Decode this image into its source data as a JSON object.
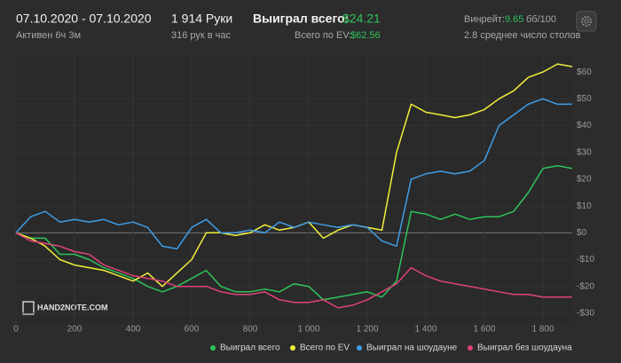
{
  "header": {
    "period": "07.10.2020 - 07.10.2020",
    "active": "Активен 6ч 3м",
    "hands": "1 914 Руки",
    "rate": "316 рук в час",
    "won_label": "Выиграл всего:",
    "won_value": "$24.21",
    "ev_label": "Всего по EV:",
    "ev_value": "$62.56",
    "winrate_label": "Винрейт:",
    "winrate_value": "9.65",
    "winrate_unit": "бб/100",
    "tables": "2.8 среднее число столов",
    "logo": "HAND2NOTE.COM"
  },
  "chart_data": {
    "type": "line",
    "x": [
      0,
      50,
      100,
      150,
      200,
      250,
      300,
      350,
      400,
      450,
      500,
      550,
      600,
      650,
      700,
      750,
      800,
      850,
      900,
      950,
      1000,
      1050,
      1100,
      1150,
      1200,
      1250,
      1300,
      1350,
      1400,
      1450,
      1500,
      1550,
      1600,
      1650,
      1700,
      1750,
      1800,
      1850,
      1900
    ],
    "series": [
      {
        "name": "Выиграл всего",
        "color": "#2ec45a",
        "values": [
          0,
          -2,
          -2,
          -8,
          -8,
          -10,
          -13,
          -15,
          -17,
          -20,
          -22,
          -20,
          -17,
          -14,
          -20,
          -22,
          -22,
          -21,
          -22,
          -19,
          -20,
          -25,
          -24,
          -23,
          -22,
          -24,
          -18,
          8,
          7,
          5,
          7,
          5,
          6,
          6,
          8,
          15,
          24,
          25,
          24
        ]
      },
      {
        "name": "Всего по EV",
        "color": "#f2f03a",
        "values": [
          0,
          -2,
          -5,
          -10,
          -12,
          -13,
          -14,
          -16,
          -18,
          -15,
          -20,
          -15,
          -10,
          0,
          0,
          -1,
          0,
          3,
          1,
          2,
          4,
          -2,
          1,
          3,
          2,
          1,
          30,
          48,
          45,
          44,
          43,
          44,
          46,
          50,
          53,
          58,
          60,
          63,
          62
        ]
      },
      {
        "name": "Выиграл на шоудауне",
        "color": "#3f9ee8",
        "values": [
          0,
          6,
          8,
          4,
          5,
          4,
          5,
          3,
          4,
          2,
          -5,
          -6,
          2,
          5,
          0,
          0,
          1,
          0,
          4,
          2,
          4,
          3,
          2,
          3,
          2,
          -3,
          -5,
          20,
          22,
          23,
          22,
          23,
          27,
          40,
          44,
          48,
          50,
          48,
          48
        ]
      },
      {
        "name": "Выиграл без шоудауна",
        "color": "#e0417a",
        "values": [
          0,
          -3,
          -4,
          -5,
          -7,
          -8,
          -12,
          -14,
          -16,
          -17,
          -18,
          -20,
          -20,
          -20,
          -22,
          -23,
          -23,
          -22,
          -25,
          -26,
          -26,
          -25,
          -28,
          -27,
          -25,
          -22,
          -19,
          -13,
          -16,
          -18,
          -19,
          -20,
          -21,
          -22,
          -23,
          -23,
          -24,
          -24,
          -24
        ]
      }
    ],
    "xlim": [
      0,
      1900
    ],
    "xticks": [
      0,
      200,
      400,
      600,
      800,
      {
        "value": 1000,
        "label": "1 000"
      },
      {
        "value": 1200,
        "label": "1 200"
      },
      {
        "value": 1400,
        "label": "1 400"
      },
      {
        "value": 1600,
        "label": "1 600"
      },
      {
        "value": 1800,
        "label": "1 800"
      }
    ],
    "ylim": [
      -34,
      66
    ],
    "yticks": [
      {
        "value": -30,
        "label": "-$30"
      },
      {
        "value": -20,
        "label": "-$20"
      },
      {
        "value": -10,
        "label": "-$10"
      },
      {
        "value": 0,
        "label": "$0"
      },
      {
        "value": 10,
        "label": "$10"
      },
      {
        "value": 20,
        "label": "$20"
      },
      {
        "value": 30,
        "label": "$30"
      },
      {
        "value": 40,
        "label": "$40"
      },
      {
        "value": 50,
        "label": "$50"
      },
      {
        "value": 60,
        "label": "$60"
      }
    ],
    "grid": true
  }
}
